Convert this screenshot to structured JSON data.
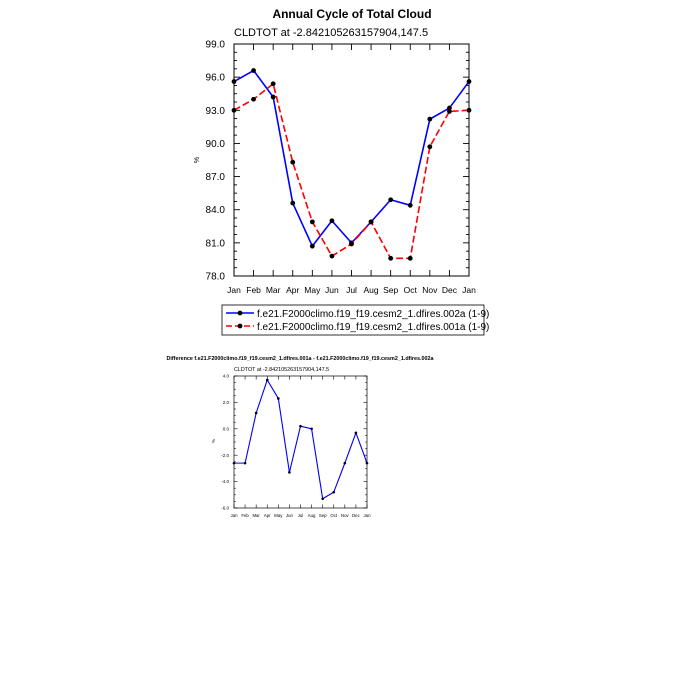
{
  "colors": {
    "series_a": "#0000ff",
    "series_b": "#ff0000",
    "axis": "#000000"
  },
  "chart_data": [
    {
      "type": "line",
      "title": "Annual Cycle of Total Cloud",
      "subtitle": "CLDTOT at -2.842105263157904,147.5",
      "ylabel": "%",
      "ylim": [
        78.0,
        99.0
      ],
      "yticks": [
        "78.0",
        "81.0",
        "84.0",
        "87.0",
        "90.0",
        "93.0",
        "96.0",
        "99.0"
      ],
      "categories": [
        "Jan",
        "Feb",
        "Mar",
        "Apr",
        "May",
        "Jun",
        "Jul",
        "Aug",
        "Sep",
        "Oct",
        "Nov",
        "Dec",
        "Jan"
      ],
      "series": [
        {
          "name": "f.e21.F2000climo.f19_f19.cesm2_1.dfires.002a (1-9)",
          "style": "solid",
          "values": [
            95.6,
            96.6,
            94.2,
            84.6,
            80.7,
            83.0,
            81.0,
            82.9,
            84.9,
            84.4,
            92.2,
            93.2,
            95.6
          ]
        },
        {
          "name": "f.e21.F2000climo.f19_f19.cesm2_1.dfires.001a (1-9)",
          "style": "dashed",
          "values": [
            93.0,
            94.0,
            95.4,
            88.3,
            82.9,
            79.8,
            80.9,
            82.9,
            79.6,
            79.6,
            89.7,
            92.9,
            93.0
          ]
        }
      ]
    },
    {
      "type": "line",
      "title": "Difference f.e21.F2000climo.f19_f19.cesm2_1.dfires.001a - f.e21.F2000climo.f19_f19.cesm2_1.dfires.002a",
      "subtitle": "CLDTOT at -2.842105263157904,147.5",
      "ylabel": "%",
      "ylim": [
        -6.0,
        4.0
      ],
      "yticks": [
        "-6.0",
        "-4.0",
        "-2.0",
        "0.0",
        "2.0",
        "4.0"
      ],
      "categories": [
        "Jan",
        "Feb",
        "Mar",
        "Apr",
        "May",
        "Jun",
        "Jul",
        "Aug",
        "Sep",
        "Oct",
        "Nov",
        "Dec",
        "Jan"
      ],
      "series": [
        {
          "name": "difference",
          "style": "solid",
          "values": [
            -2.6,
            -2.6,
            1.2,
            3.7,
            2.3,
            -3.3,
            0.2,
            0.0,
            -5.3,
            -4.8,
            -2.6,
            -0.3,
            -2.6
          ]
        }
      ]
    }
  ]
}
